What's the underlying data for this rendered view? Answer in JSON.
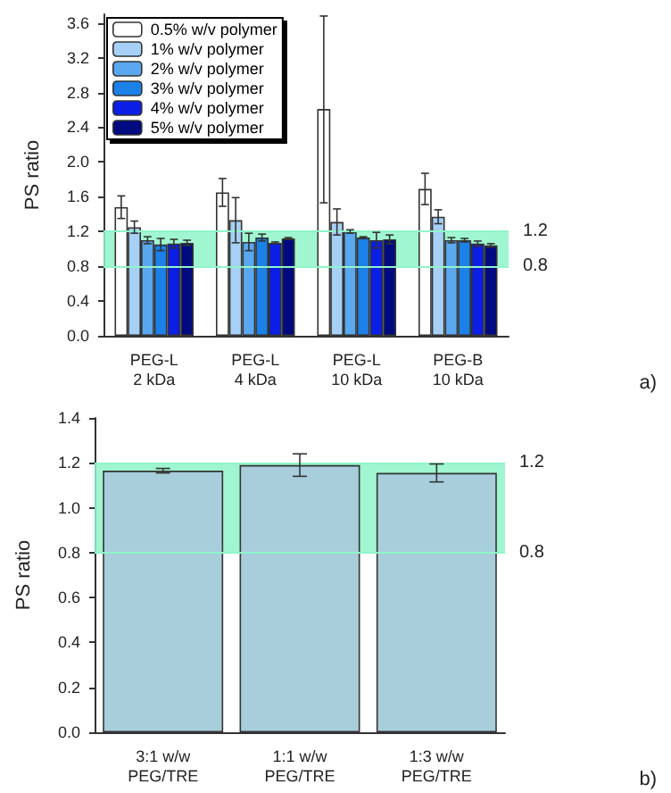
{
  "chart_data": [
    {
      "type": "bar",
      "ylabel": "PS ratio",
      "categories": [
        "PEG-L\n2 kDa",
        "PEG-L\n4 kDa",
        "PEG-L\n10 kDa",
        "PEG-B\n10 kDa"
      ],
      "series": [
        {
          "name": "0.5% w/v polymer",
          "color": "#ffffff",
          "values": [
            1.48,
            1.65,
            2.61,
            1.69
          ],
          "errors": [
            0.13,
            0.16,
            [
              1.53,
              3.68
            ],
            0.18
          ]
        },
        {
          "name": "1% w/v polymer",
          "color": "#a6d0f5",
          "values": [
            1.25,
            1.33,
            1.31,
            1.37
          ],
          "errors": [
            0.07,
            0.26,
            0.15,
            0.08
          ]
        },
        {
          "name": "2% w/v polymer",
          "color": "#5aa8ef",
          "values": [
            1.1,
            1.08,
            1.2,
            1.1
          ],
          "errors": [
            0.04,
            0.1,
            0.02,
            0.03
          ]
        },
        {
          "name": "3% w/v polymer",
          "color": "#1b80e8",
          "values": [
            1.05,
            1.13,
            1.13,
            1.1
          ],
          "errors": [
            0.07,
            0.04,
            0.01,
            0.02
          ]
        },
        {
          "name": "4% w/v polymer",
          "color": "#0a1ee6",
          "values": [
            1.06,
            1.07,
            1.1,
            1.06
          ],
          "errors": [
            0.05,
            0.01,
            0.09,
            0.03
          ]
        },
        {
          "name": "5% w/v polymer",
          "color": "#000a80",
          "values": [
            1.07,
            1.12,
            1.11,
            1.04
          ],
          "errors": [
            0.03,
            0.01,
            0.05,
            0.02
          ]
        }
      ],
      "ylim": [
        0,
        3.7
      ],
      "yticks": [
        {
          "value": 0,
          "label": "0.0"
        },
        0.4,
        0.8,
        1.2,
        1.6,
        {
          "value": 2,
          "label": "2.0"
        },
        2.4,
        2.8,
        3.2,
        3.6
      ],
      "bands": [
        {
          "axis": "y",
          "from": 0.8,
          "to": 1.2,
          "color": "#8ff5c8"
        }
      ],
      "ref_lines": [
        {
          "axis": "y",
          "value": 1.2,
          "label": "1.2",
          "color": "#8ff5c8"
        },
        {
          "axis": "y",
          "value": 0.8,
          "label": "0.8",
          "color": "#8ff5c8"
        }
      ],
      "annotations": [
        "a)"
      ],
      "legend": "top left",
      "grid": false
    },
    {
      "type": "bar",
      "ylabel": "PS ratio",
      "categories": [
        "3:1 w/w\nPEG/TRE",
        "1:1 w/w\nPEG/TRE",
        "1:3 w/w\nPEG/TRE"
      ],
      "series": [
        {
          "color": "#a8cedc",
          "values": [
            1.165,
            1.19,
            1.155
          ],
          "errors": [
            0.01,
            0.05,
            0.04
          ]
        }
      ],
      "ylim": [
        0,
        1.4
      ],
      "yticks": [
        {
          "value": 0,
          "label": "0.0"
        },
        0.2,
        0.4,
        0.6,
        0.8,
        {
          "value": 1,
          "label": "1.0"
        },
        1.2,
        1.4
      ],
      "bands": [
        {
          "axis": "y",
          "from": 0.8,
          "to": 1.2,
          "color": "#8ff5c8"
        }
      ],
      "ref_lines": [
        {
          "axis": "y",
          "value": 1.2,
          "label": "1.2",
          "color": "#8ff5c8"
        },
        {
          "axis": "y",
          "value": 0.8,
          "label": "0.8",
          "color": "#8ff5c8"
        }
      ],
      "annotations": [
        "b)"
      ],
      "legend": false,
      "grid": false
    }
  ]
}
